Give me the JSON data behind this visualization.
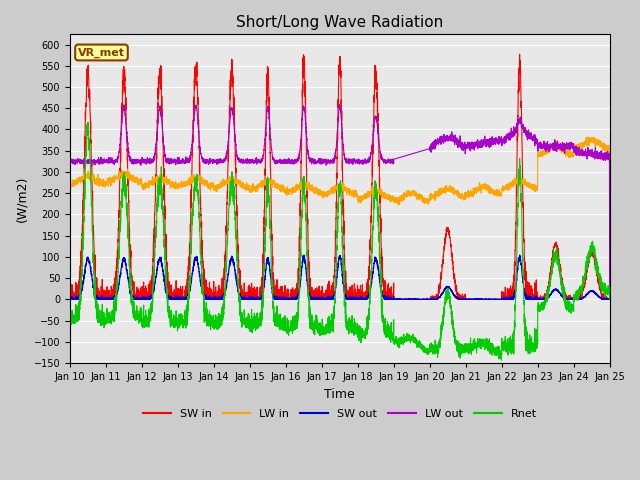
{
  "title": "Short/Long Wave Radiation",
  "xlabel": "Time",
  "ylabel": "(W/m2)",
  "ylim": [
    -150,
    625
  ],
  "yticks": [
    -150,
    -100,
    -50,
    0,
    50,
    100,
    150,
    200,
    250,
    300,
    350,
    400,
    450,
    500,
    550,
    600
  ],
  "annotation": "VR_met",
  "colors": {
    "SW_in": "#ff0000",
    "LW_in": "#ffa500",
    "SW_out": "#0000dd",
    "LW_out": "#aa00cc",
    "Rnet": "#00cc00"
  },
  "legend_labels": [
    "SW in",
    "LW in",
    "SW out",
    "LW out",
    "Rnet"
  ],
  "n_days": 15,
  "start_day": 10
}
